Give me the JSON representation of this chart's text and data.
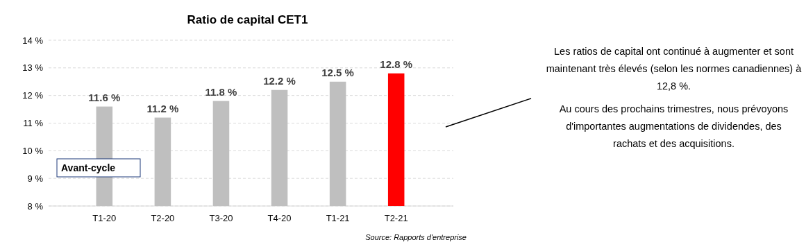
{
  "chart_data": {
    "type": "bar",
    "title": "Ratio de capital CET1",
    "categories": [
      "T1-20",
      "T2-20",
      "T3-20",
      "T4-20",
      "T1-21",
      "T2-21"
    ],
    "values": [
      11.6,
      11.2,
      11.8,
      12.2,
      12.5,
      12.8
    ],
    "colors": [
      "#bfbfbf",
      "#bfbfbf",
      "#bfbfbf",
      "#bfbfbf",
      "#bfbfbf",
      "#ff0000"
    ],
    "value_labels": [
      "11.6 %",
      "11.2 %",
      "11.8 %",
      "12.2 %",
      "12.5 %",
      "12.8 %"
    ],
    "ylim": [
      8,
      14
    ],
    "yticks": [
      {
        "value": 8,
        "label": "8 %"
      },
      {
        "value": 9,
        "label": "9 %"
      },
      {
        "value": 10,
        "label": "10 %"
      },
      {
        "value": 11,
        "label": "11 %"
      },
      {
        "value": 12,
        "label": "12 %"
      },
      {
        "value": 13,
        "label": "13 %"
      },
      {
        "value": 14,
        "label": "14 %"
      }
    ],
    "grid": "y",
    "annotations": [
      "Avant-cycle",
      "Les ratios de capital ont continué à augmenter et sont maintenant très élevés (selon les normes canadiennes) à 12,8 %.",
      "Au cours des prochains trimestres, nous prévoyons d'importantes augmentations de dividendes, des rachats et des acquisitions.",
      "Source: Rapports d'entreprise"
    ]
  }
}
